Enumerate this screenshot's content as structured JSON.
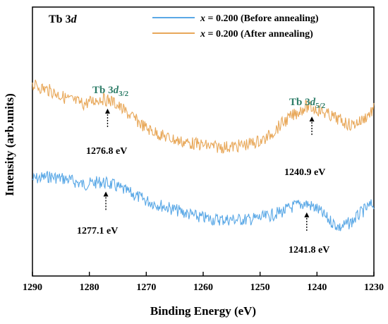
{
  "chart_data": {
    "type": "line",
    "panel_label": "Tb 3",
    "panel_label_italic": "d",
    "xlabel": "Binding Energy (eV)",
    "ylabel": "Intensity (arb.units)",
    "xlim": [
      1290,
      1230
    ],
    "x_reversed": true,
    "ylim": [
      0,
      1
    ],
    "y_ticks_shown": false,
    "x_ticks": [
      1290,
      1280,
      1270,
      1260,
      1250,
      1240,
      1230
    ],
    "grid": false,
    "legend_position": "top-right",
    "series": [
      {
        "var": "x",
        "name": " = 0.200 (Before annealing)",
        "color": "#5aa8e6",
        "x": [
          1290,
          1287,
          1284,
          1281,
          1278,
          1276,
          1273,
          1270,
          1267,
          1264,
          1261,
          1258,
          1255,
          1252,
          1249,
          1246,
          1244,
          1242,
          1240,
          1238,
          1236,
          1234,
          1232,
          1230
        ],
        "y": [
          0.36,
          0.37,
          0.36,
          0.34,
          0.35,
          0.34,
          0.31,
          0.28,
          0.26,
          0.24,
          0.22,
          0.21,
          0.21,
          0.21,
          0.22,
          0.24,
          0.26,
          0.27,
          0.25,
          0.21,
          0.18,
          0.2,
          0.24,
          0.27
        ]
      },
      {
        "var": "x",
        "name": " = 0.200 (After annealing)",
        "color": "#e8a85a",
        "x": [
          1290,
          1287,
          1284,
          1281,
          1278,
          1276,
          1273,
          1270,
          1267,
          1264,
          1261,
          1258,
          1255,
          1252,
          1249,
          1246,
          1244,
          1242,
          1240,
          1238,
          1236,
          1234,
          1232,
          1230
        ],
        "y": [
          0.71,
          0.69,
          0.66,
          0.64,
          0.66,
          0.65,
          0.6,
          0.55,
          0.52,
          0.5,
          0.49,
          0.48,
          0.48,
          0.49,
          0.51,
          0.57,
          0.6,
          0.63,
          0.62,
          0.6,
          0.58,
          0.56,
          0.58,
          0.62
        ]
      }
    ],
    "peak_labels": [
      {
        "prefix": "Tb 3",
        "italic": "d",
        "sub": "3/2",
        "x": 1279
      },
      {
        "prefix": "Tb 3",
        "italic": "d",
        "sub": "5/2",
        "x": 1240.5
      }
    ],
    "annotations": [
      {
        "text": "1276.8 eV",
        "x": 1276.8,
        "series": 1
      },
      {
        "text": "1240.9 eV",
        "x": 1240.9,
        "series": 1
      },
      {
        "text": "1277.1 eV",
        "x": 1277.1,
        "series": 0
      },
      {
        "text": "1241.8 eV",
        "x": 1241.8,
        "series": 0
      }
    ]
  }
}
